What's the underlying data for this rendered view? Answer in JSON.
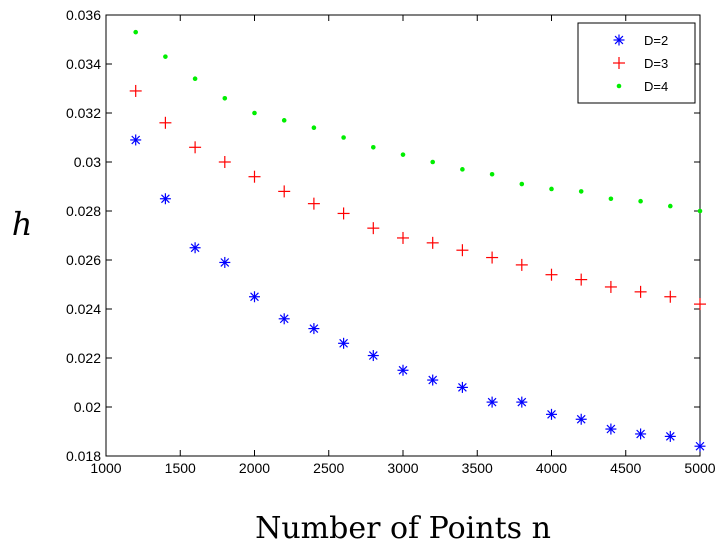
{
  "chart_data": {
    "type": "scatter",
    "title": "",
    "xlabel": "Number of Points n",
    "ylabel": "h",
    "xlim": [
      1000,
      5000
    ],
    "ylim": [
      0.018,
      0.036
    ],
    "xticks": [
      1000,
      1500,
      2000,
      2500,
      3000,
      3500,
      4000,
      4500,
      5000
    ],
    "xtick_labels": [
      "1000",
      "1500",
      "2000",
      "2500",
      "3000",
      "3500",
      "4000",
      "4500",
      "5000"
    ],
    "yticks": [
      0.018,
      0.02,
      0.022,
      0.024,
      0.026,
      0.028,
      0.03,
      0.032,
      0.034,
      0.036
    ],
    "ytick_labels": [
      "0.018",
      "0.02",
      "0.022",
      "0.024",
      "0.026",
      "0.028",
      "0.03",
      "0.032",
      "0.034",
      "0.036"
    ],
    "grid": false,
    "legend_position": "top-right",
    "x": [
      1200,
      1400,
      1600,
      1800,
      2000,
      2200,
      2400,
      2600,
      2800,
      3000,
      3200,
      3400,
      3600,
      3800,
      4000,
      4200,
      4400,
      4600,
      4800,
      5000
    ],
    "series": [
      {
        "name": "D=2",
        "color": "#0000ff",
        "marker": "asterisk",
        "values": [
          0.0309,
          0.0285,
          0.0265,
          0.0259,
          0.0245,
          0.0236,
          0.0232,
          0.0226,
          0.0221,
          0.0215,
          0.0211,
          0.0208,
          0.0202,
          0.0202,
          0.0197,
          0.0195,
          0.0191,
          0.0189,
          0.0188,
          0.0184
        ]
      },
      {
        "name": "D=3",
        "color": "#ff0000",
        "marker": "plus",
        "values": [
          0.0329,
          0.0316,
          0.0306,
          0.03,
          0.0294,
          0.0288,
          0.0283,
          0.0279,
          0.0273,
          0.0269,
          0.0267,
          0.0264,
          0.0261,
          0.0258,
          0.0254,
          0.0252,
          0.0249,
          0.0247,
          0.0245,
          0.0242
        ]
      },
      {
        "name": "D=4",
        "color": "#00ee00",
        "marker": "dot",
        "values": [
          0.0353,
          0.0343,
          0.0334,
          0.0326,
          0.032,
          0.0317,
          0.0314,
          0.031,
          0.0306,
          0.0303,
          0.03,
          0.0297,
          0.0295,
          0.0291,
          0.0289,
          0.0288,
          0.0285,
          0.0284,
          0.0282,
          0.028
        ]
      }
    ]
  }
}
